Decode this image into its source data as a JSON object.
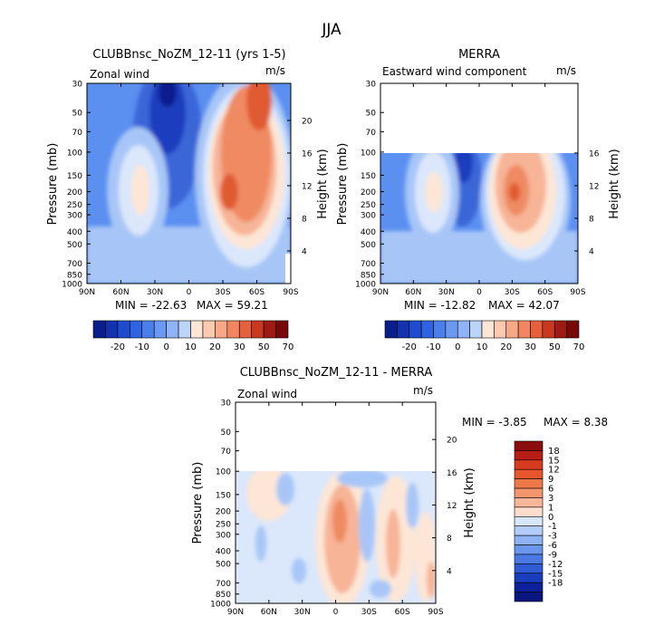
{
  "title": "JJA",
  "chart_data": [
    {
      "type": "heatmap",
      "panel": "model",
      "title": "CLUBBnsc_NoZM_12-11 (yrs 1-5)",
      "subtitle_left": "Zonal wind",
      "subtitle_right": "m/s",
      "ylabel": "Pressure (mb)",
      "ylabel_right": "Height (km)",
      "xticks": [
        "90N",
        "60N",
        "30N",
        "0",
        "30S",
        "60S",
        "90S"
      ],
      "yticks": [
        "30",
        "50",
        "70",
        "100",
        "150",
        "200",
        "250",
        "300",
        "400",
        "500",
        "700",
        "850",
        "1000"
      ],
      "height_ticks": [
        "20",
        "16",
        "12",
        "8",
        "4"
      ],
      "ylim_mb": [
        1000,
        30
      ],
      "min_label": "MIN = -22.63",
      "max_label": "MAX = 59.21",
      "min": -22.63,
      "max": 59.21,
      "levels": [
        -20,
        -10,
        0,
        10,
        20,
        30,
        50,
        70
      ],
      "colorbar_labels": [
        "-20",
        "-10",
        "0",
        "10",
        "20",
        "30",
        "50",
        "70"
      ],
      "features": [
        {
          "name": "southern subtropical jet",
          "lat": -40,
          "p_mb": 200,
          "u": 45
        },
        {
          "name": "southern stratospheric jet",
          "lat": -60,
          "p_mb": 40,
          "u": 59
        },
        {
          "name": "northern midlatitude jet",
          "lat": 45,
          "p_mb": 200,
          "u": 15
        },
        {
          "name": "tropical stratospheric easterlies",
          "lat": 15,
          "p_mb": 40,
          "u": -22
        }
      ]
    },
    {
      "type": "heatmap",
      "panel": "obs",
      "title": "MERRA",
      "subtitle_left": "Eastward wind component",
      "subtitle_right": "m/s",
      "ylabel": "Pressure (mb)",
      "ylabel_right": "Height (km)",
      "xticks": [
        "90N",
        "60N",
        "30N",
        "0",
        "30S",
        "60S",
        "90S"
      ],
      "yticks": [
        "30",
        "50",
        "70",
        "100",
        "150",
        "200",
        "250",
        "300",
        "400",
        "500",
        "700",
        "850",
        "1000"
      ],
      "height_ticks": [
        "16",
        "12",
        "8",
        "4"
      ],
      "data_top_mb": 100,
      "min_label": "MIN = -12.82",
      "max_label": "MAX = 42.07",
      "min": -12.82,
      "max": 42.07,
      "levels": [
        -20,
        -10,
        0,
        10,
        20,
        30,
        50,
        70
      ],
      "colorbar_labels": [
        "-20",
        "-10",
        "0",
        "10",
        "20",
        "30",
        "50",
        "70"
      ]
    },
    {
      "type": "heatmap",
      "panel": "difference",
      "title": "CLUBBnsc_NoZM_12-11 - MERRA",
      "subtitle_left": "Zonal wind",
      "subtitle_right": "m/s",
      "ylabel": "Pressure (mb)",
      "ylabel_right": "Height (km)",
      "xticks": [
        "90N",
        "60N",
        "30N",
        "0",
        "30S",
        "60S",
        "90S"
      ],
      "yticks": [
        "30",
        "50",
        "70",
        "100",
        "150",
        "200",
        "250",
        "300",
        "400",
        "500",
        "700",
        "850",
        "1000"
      ],
      "height_ticks": [
        "20",
        "16",
        "12",
        "8",
        "4"
      ],
      "data_top_mb": 100,
      "min_label": "MIN =   -3.85",
      "max_label": "MAX =    8.38",
      "min": -3.85,
      "max": 8.38,
      "levels": [
        -18,
        -15,
        -12,
        -9,
        -6,
        -3,
        -1,
        0,
        1,
        3,
        6,
        9,
        12,
        15,
        18
      ],
      "colorbar_labels": [
        "18",
        "15",
        "12",
        "9",
        "6",
        "3",
        "1",
        "0",
        "-1",
        "-3",
        "-6",
        "-9",
        "-12",
        "-15",
        "-18"
      ]
    }
  ]
}
